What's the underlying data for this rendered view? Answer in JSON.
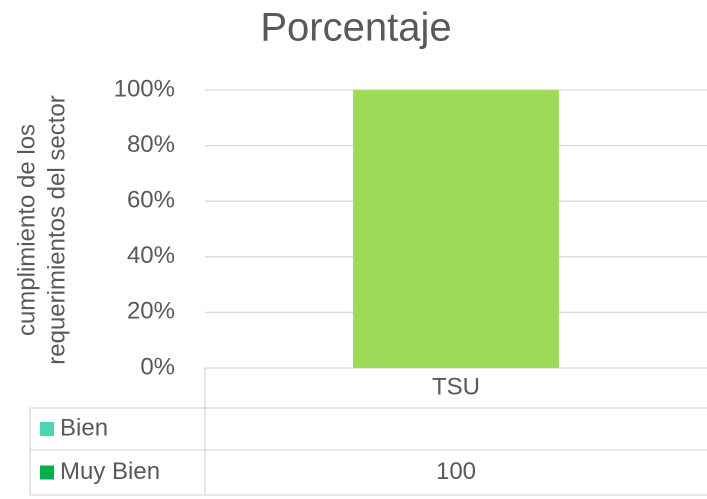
{
  "chart_data": {
    "type": "bar",
    "title": "Porcentaje",
    "y_label": [
      "cumplimiento de los",
      "requerimientos  del sector"
    ],
    "categories": [
      "TSU"
    ],
    "series": [
      {
        "name": "Bien",
        "color": "#4dd5b3",
        "values": [
          null
        ]
      },
      {
        "name": "Muy Bien",
        "color": "#00b050",
        "bar_color": "#9bdb58",
        "values": [
          100
        ]
      }
    ],
    "ylim": [
      0,
      100
    ],
    "yticks": [
      {
        "value": 0,
        "label": "0%"
      },
      {
        "value": 20,
        "label": "20%"
      },
      {
        "value": 40,
        "label": "40%"
      },
      {
        "value": 60,
        "label": "60%"
      },
      {
        "value": 80,
        "label": "80%"
      },
      {
        "value": 100,
        "label": "100%"
      }
    ],
    "grid": true,
    "data_table": true
  }
}
